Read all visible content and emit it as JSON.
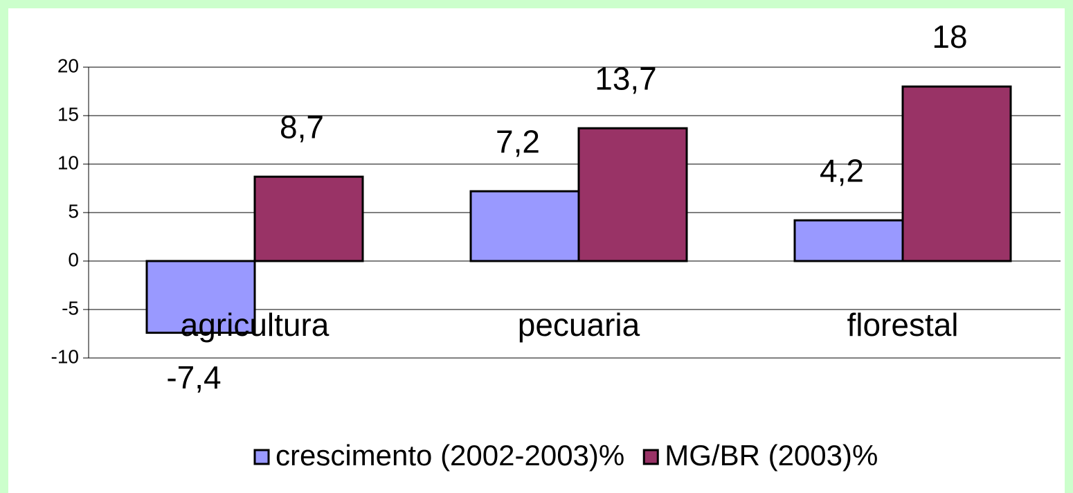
{
  "chart_data": {
    "type": "bar",
    "categories": [
      "agricultura",
      "pecuaria",
      "florestal"
    ],
    "series": [
      {
        "name": "crescimento (2002-2003)%",
        "color": "#9999ff",
        "values": [
          -7.4,
          7.2,
          4.2
        ],
        "value_labels": [
          "-7,4",
          "7,2",
          "4,2"
        ]
      },
      {
        "name": "MG/BR (2003)%",
        "color": "#993366",
        "values": [
          8.7,
          13.7,
          18
        ],
        "value_labels": [
          "8,7",
          "13,7",
          "18"
        ]
      }
    ],
    "ylim": [
      -10,
      20
    ],
    "yticks": [
      -10,
      -5,
      0,
      5,
      10,
      15,
      20
    ],
    "grid": true,
    "legend": "bottom"
  }
}
